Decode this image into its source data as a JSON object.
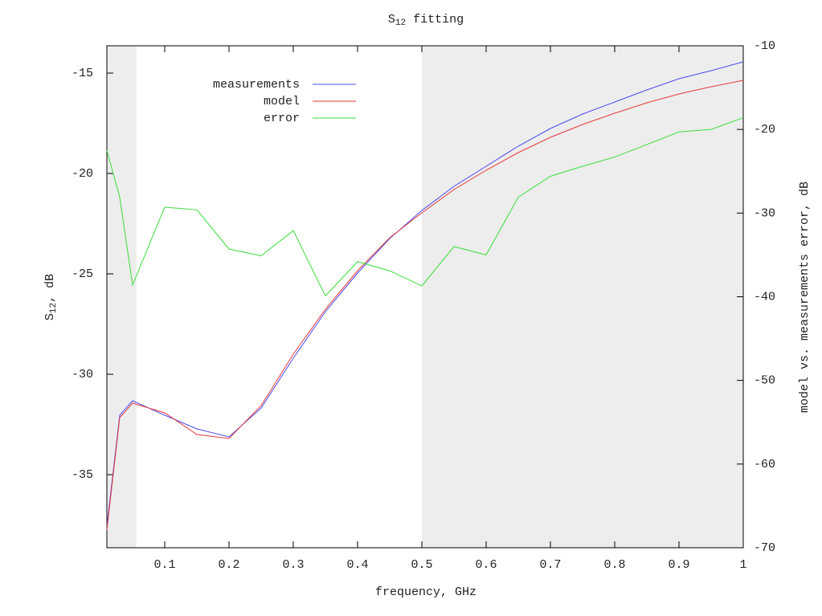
{
  "chart_data": {
    "type": "line",
    "title": [
      "S",
      "12",
      " fitting"
    ],
    "xlabel": "frequency, GHz",
    "ylabel": [
      "S",
      "12",
      ", dB"
    ],
    "y2label": "model vs. measurements error, dB",
    "x": [
      0.01,
      0.03,
      0.05,
      0.1,
      0.15,
      0.2,
      0.25,
      0.3,
      0.35,
      0.4,
      0.45,
      0.5,
      0.55,
      0.6,
      0.65,
      0.7,
      0.75,
      0.8,
      0.85,
      0.9,
      0.95,
      1
    ],
    "series": [
      {
        "name": "measurements",
        "color": "#4a4aee",
        "values": [
          -37.56,
          -32.04,
          -31.32,
          -32.04,
          -32.72,
          -33.12,
          -31.68,
          -29.2,
          -26.88,
          -24.96,
          -23.24,
          -21.84,
          -20.64,
          -19.64,
          -18.64,
          -17.76,
          -17.04,
          -16.44,
          -15.84,
          -15.28,
          -14.88,
          -14.44
        ]
      },
      {
        "name": "model",
        "color": "#e83a3a",
        "values": [
          -37.76,
          -32.16,
          -31.44,
          -31.92,
          -33.0,
          -33.2,
          -31.56,
          -29.0,
          -26.76,
          -24.84,
          -23.2,
          -21.96,
          -20.8,
          -19.84,
          -18.96,
          -18.2,
          -17.56,
          -17.0,
          -16.48,
          -16.04,
          -15.68,
          -15.36
        ]
      },
      {
        "name": "error",
        "color": "#3ade3a",
        "axis": "y2",
        "values": [
          -22.5,
          -28.1,
          -38.6,
          -29.3,
          -29.6,
          -34.3,
          -35.1,
          -32.1,
          -39.9,
          -35.8,
          -36.9,
          -38.7,
          -34.0,
          -35.0,
          -28.1,
          -25.6,
          -24.4,
          -23.3,
          -21.8,
          -20.3,
          -20.0,
          -18.6
        ]
      }
    ],
    "xlim": [
      0.01,
      1
    ],
    "xticks": [
      0.1,
      0.2,
      0.3,
      0.4,
      0.5,
      0.6,
      0.7,
      0.8,
      0.9,
      1
    ],
    "ylim": [
      -38.64,
      -13.64
    ],
    "yticks": [
      -15,
      -20,
      -25,
      -30,
      -35
    ],
    "y2lim": [
      -70,
      -10
    ],
    "y2ticks": [
      -10,
      -20,
      -30,
      -40,
      -50,
      -60,
      -70
    ],
    "y2color": "#3ade3a",
    "shaded_regions": [
      [
        0.01,
        0.056
      ],
      [
        0.5,
        1
      ]
    ],
    "shade_color": "#ededed",
    "legend": "top-left",
    "grid": false
  }
}
